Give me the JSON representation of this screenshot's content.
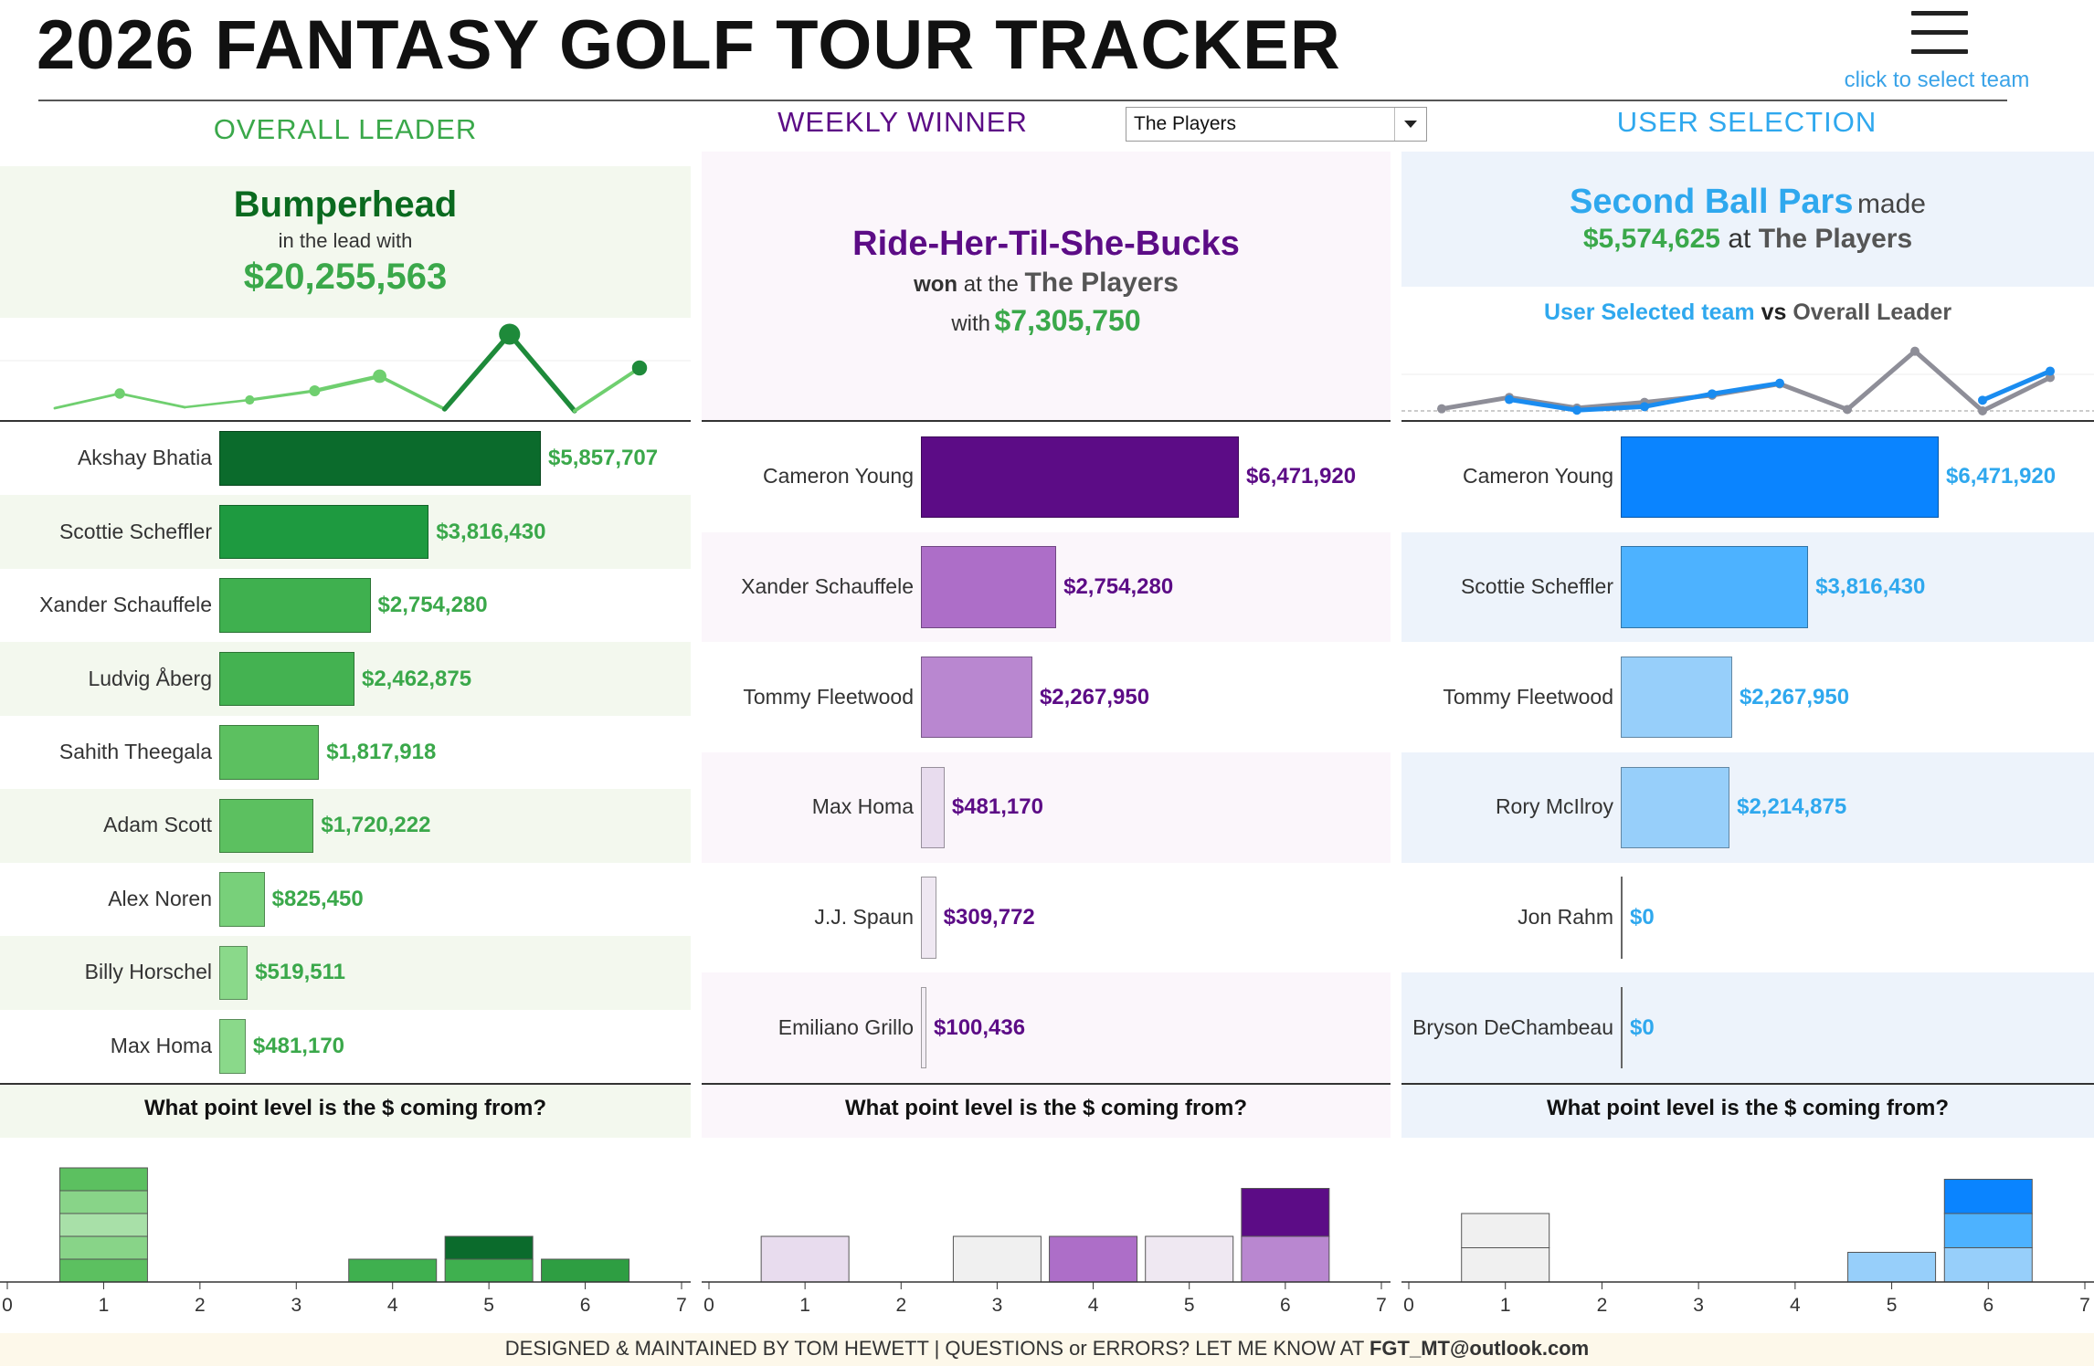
{
  "header": {
    "title": "2026 FANTASY GOLF TOUR TRACKER",
    "menu_caption": "click to select team",
    "dropdown_value": "The Players"
  },
  "colors": {
    "green": "#3aa84a",
    "dark_green": "#0a6a1f",
    "purple": "#5c0c86",
    "blue": "#2fa8ee"
  },
  "overall": {
    "heading": "OVERALL LEADER",
    "team": "Bumperhead",
    "subtitle": "in the lead with",
    "amount": "$20,255,563",
    "question": "What point level is the $ coming from?"
  },
  "weekly": {
    "heading": "WEEKLY WINNER",
    "team": "Ride-Her-Til-She-Bucks",
    "won": "won",
    "at_the": "at the",
    "event": "The Players",
    "with": "with",
    "amount": "$7,305,750",
    "question": "What point level is the $ coming from?"
  },
  "user": {
    "heading": "USER SELECTION",
    "team": "Second Ball Pars",
    "made": "made",
    "amount": "$5,574,625",
    "at": "at",
    "event": "The Players",
    "compare_a": "User Selected team",
    "compare_vs": "vs",
    "compare_b": "Overall Leader",
    "question": "What point level is the $ coming from?"
  },
  "footer": {
    "left": "DESIGNED & MAINTAINED BY TOM HEWETT  |  QUESTIONS or ERRORS? LET ME KNOW AT ",
    "email": "FGT_MT@outlook.com"
  },
  "chart_data": [
    {
      "type": "bar",
      "name": "overall-player-earnings",
      "categories": [
        "Akshay Bhatia",
        "Scottie Scheffler",
        "Xander Schauffele",
        "Ludvig Åberg",
        "Sahith Theegala",
        "Adam Scott",
        "Alex Noren",
        "Billy Horschel",
        "Max Homa"
      ],
      "values": [
        5857707,
        3816430,
        2754280,
        2462875,
        1817918,
        1720222,
        825450,
        519511,
        481170
      ],
      "labels": [
        "$5,857,707",
        "$3,816,430",
        "$2,754,280",
        "$2,462,875",
        "$1,817,918",
        "$1,720,222",
        "$825,450",
        "$519,511",
        "$481,170"
      ],
      "colors": [
        "#0b6b2c",
        "#1e9a40",
        "#3fb04f",
        "#44b251",
        "#5cc060",
        "#5cc060",
        "#78d07a",
        "#8ad98a",
        "#8ad98a"
      ]
    },
    {
      "type": "bar",
      "name": "weekly-player-earnings",
      "categories": [
        "Cameron Young",
        "Xander Schauffele",
        "Tommy Fleetwood",
        "Max Homa",
        "J.J. Spaun",
        "Emiliano Grillo"
      ],
      "values": [
        6471920,
        2754280,
        2267950,
        481170,
        309772,
        100436
      ],
      "labels": [
        "$6,471,920",
        "$2,754,280",
        "$2,267,950",
        "$481,170",
        "$309,772",
        "$100,436"
      ],
      "colors": [
        "#5c0c86",
        "#ad6ec8",
        "#b987d0",
        "#e8dcee",
        "#efe8f2",
        "#f3eef5"
      ]
    },
    {
      "type": "bar",
      "name": "user-player-earnings",
      "categories": [
        "Cameron Young",
        "Scottie Scheffler",
        "Tommy Fleetwood",
        "Rory McIlroy",
        "Jon Rahm",
        "Bryson DeChambeau"
      ],
      "values": [
        6471920,
        3816430,
        2267950,
        2214875,
        0,
        0
      ],
      "labels": [
        "$6,471,920",
        "$3,816,430",
        "$2,267,950",
        "$2,214,875",
        "$0",
        "$0"
      ],
      "colors": [
        "#0a84ff",
        "#4db2ff",
        "#97cffa",
        "#97cffa",
        "#97cffa",
        "#97cffa"
      ]
    },
    {
      "type": "line",
      "name": "overall-trend",
      "x": [
        1,
        2,
        3,
        4,
        5,
        6,
        7,
        8,
        9,
        10
      ],
      "values": [
        0.3,
        1.9,
        0.4,
        1.2,
        2.2,
        3.8,
        0.2,
        8.4,
        0,
        4.7
      ],
      "color": "#6fcf6f"
    },
    {
      "type": "line",
      "name": "user-vs-leader",
      "x": [
        1,
        2,
        3,
        4,
        5,
        6,
        7,
        8,
        9,
        10
      ],
      "series": [
        {
          "values": [
            0.3,
            1.9,
            0.4,
            1.2,
            2.2,
            3.8,
            0.2,
            8.4,
            0,
            4.7
          ],
          "color": "#8e8e98"
        },
        {
          "values": [
            null,
            1.6,
            0.1,
            0.6,
            2.4,
            3.9,
            null,
            null,
            1.5,
            5.6
          ],
          "color": "#1a8cf0"
        }
      ]
    },
    {
      "type": "bar",
      "name": "overall-point-level",
      "x_ticks": [
        "0",
        "1",
        "2",
        "3",
        "4",
        "5",
        "6",
        "7"
      ],
      "stacks": [
        {
          "level": 1,
          "segments": [
            1,
            1,
            1,
            1,
            1
          ],
          "colors": [
            "#5cc060",
            "#88d488",
            "#a8e0a8",
            "#88d488",
            "#5cc060"
          ]
        },
        {
          "level": 4,
          "segments": [
            1
          ],
          "colors": [
            "#3fb04f"
          ]
        },
        {
          "level": 5,
          "segments": [
            1,
            1
          ],
          "colors": [
            "#3fb04f",
            "#0b6b2c"
          ]
        },
        {
          "level": 6,
          "segments": [
            1
          ],
          "colors": [
            "#2e9e42"
          ]
        }
      ]
    },
    {
      "type": "bar",
      "name": "weekly-point-level",
      "x_ticks": [
        "0",
        "1",
        "2",
        "3",
        "4",
        "5",
        "6",
        "7"
      ],
      "stacks": [
        {
          "level": 1,
          "segments": [
            2
          ],
          "colors": [
            "#e8dcee"
          ]
        },
        {
          "level": 3,
          "segments": [
            2
          ],
          "colors": [
            "#f0f0f0"
          ]
        },
        {
          "level": 4,
          "segments": [
            2
          ],
          "colors": [
            "#ad6ec8"
          ]
        },
        {
          "level": 5,
          "segments": [
            2
          ],
          "colors": [
            "#efe8f2"
          ]
        },
        {
          "level": 6,
          "segments": [
            2,
            2.1
          ],
          "colors": [
            "#b987d0",
            "#5c0c86"
          ]
        }
      ]
    },
    {
      "type": "bar",
      "name": "user-point-level",
      "x_ticks": [
        "0",
        "1",
        "2",
        "3",
        "4",
        "5",
        "6",
        "7"
      ],
      "stacks": [
        {
          "level": 1,
          "segments": [
            1.5,
            1.5
          ],
          "colors": [
            "#f0f0f0",
            "#f0f0f0"
          ]
        },
        {
          "level": 5,
          "segments": [
            1.3
          ],
          "colors": [
            "#97cffa"
          ]
        },
        {
          "level": 6,
          "segments": [
            1.5,
            1.5,
            1.5
          ],
          "colors": [
            "#97cffa",
            "#4db2ff",
            "#0a84ff"
          ]
        }
      ]
    }
  ]
}
